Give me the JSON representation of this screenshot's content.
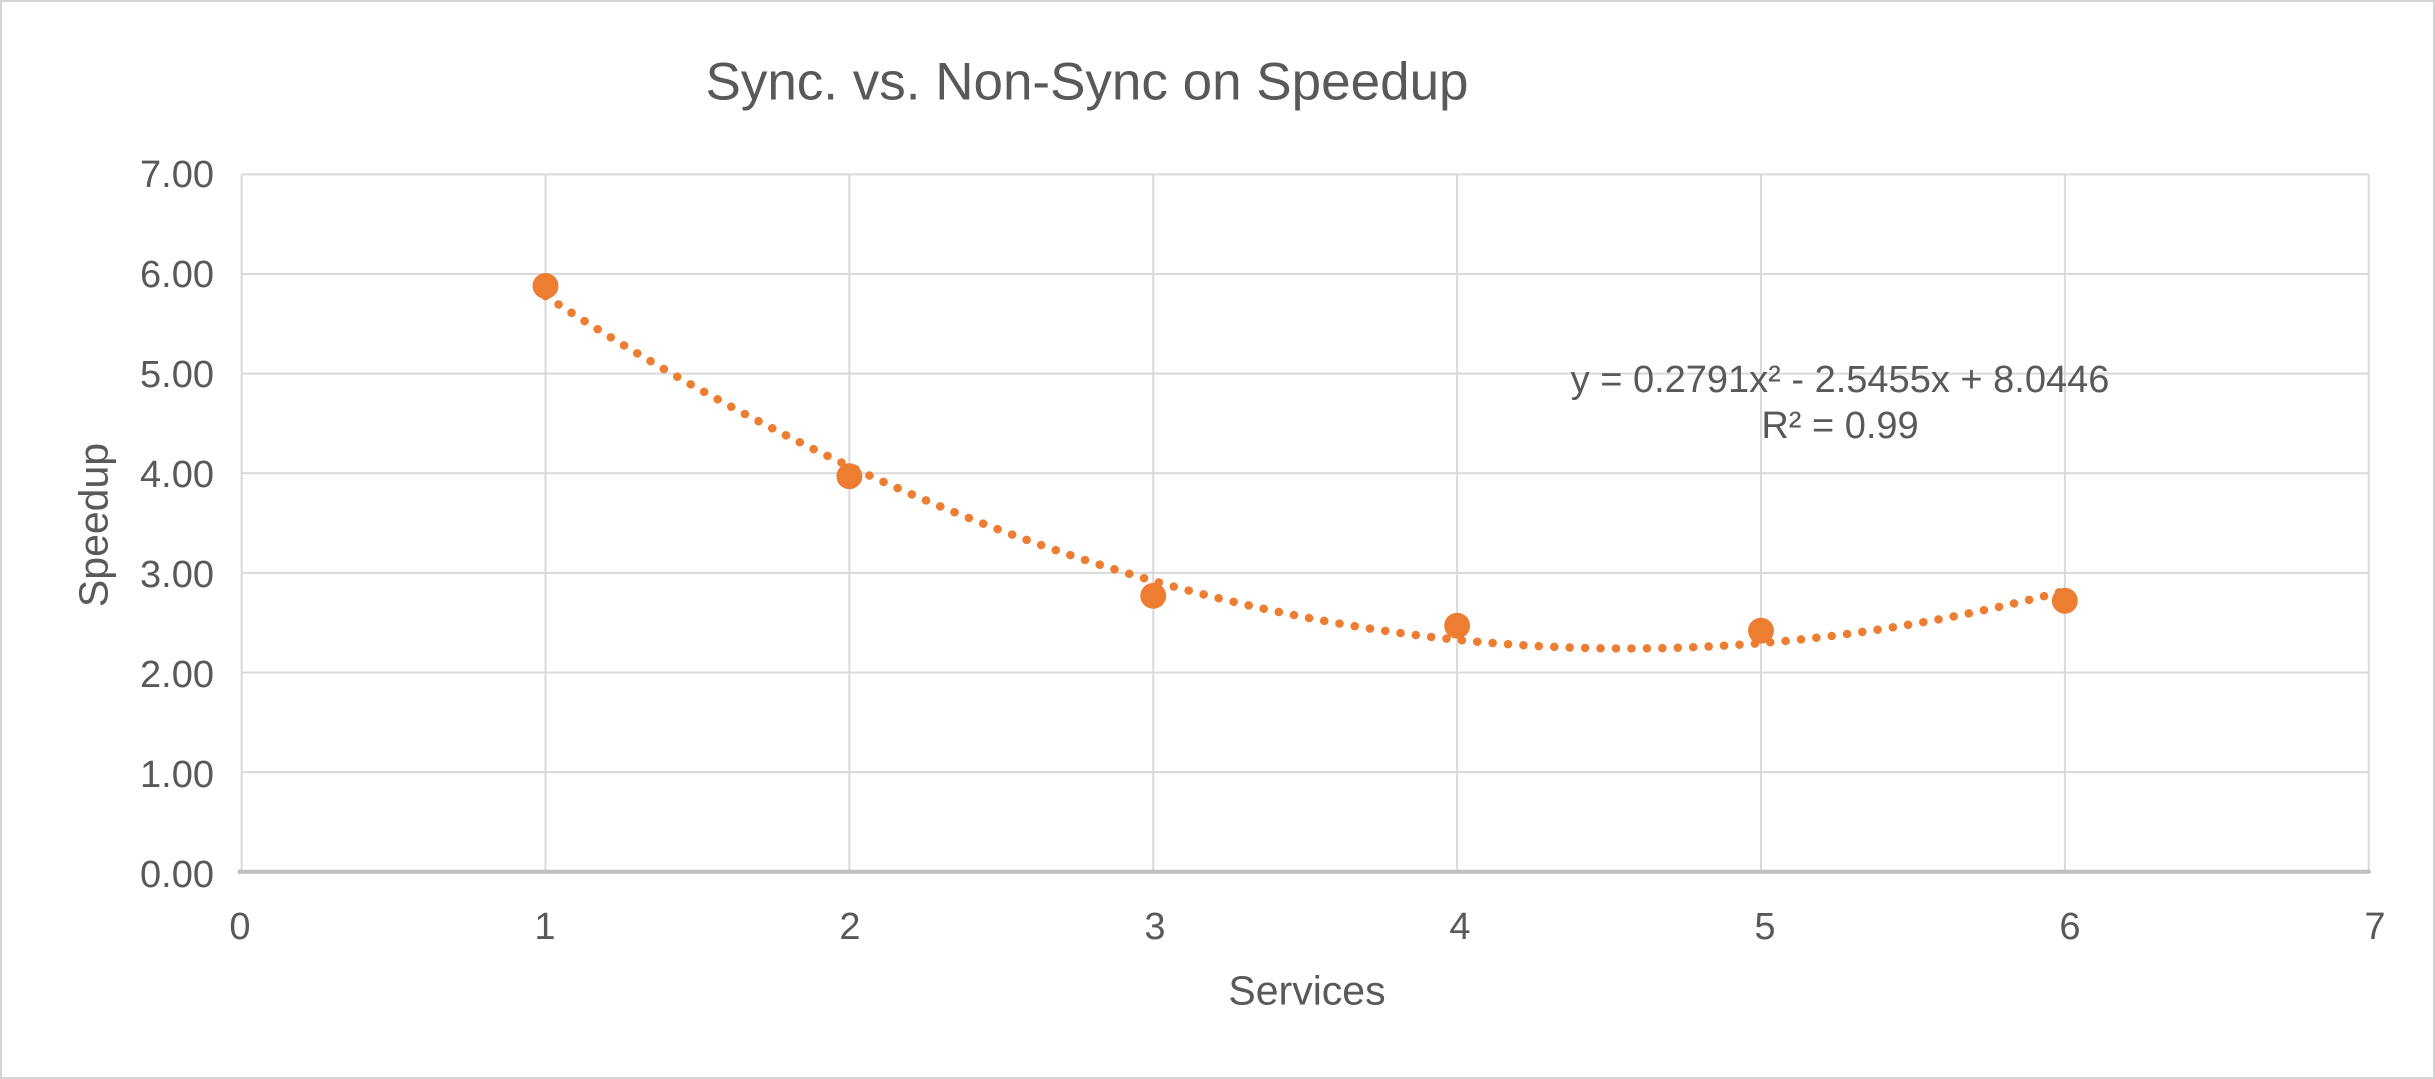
{
  "chart_data": {
    "type": "scatter",
    "title": "Sync. vs. Non-Sync on Speedup",
    "xlabel": "Services",
    "ylabel": "Speedup",
    "series": [
      {
        "name": "Speedup",
        "x": [
          1,
          2,
          3,
          4,
          5,
          6
        ],
        "y": [
          5.88,
          3.97,
          2.77,
          2.47,
          2.42,
          2.72
        ]
      }
    ],
    "xlim": [
      0,
      7
    ],
    "ylim": [
      0,
      7
    ],
    "x_ticks": {
      "values": [
        0,
        1,
        2,
        3,
        4,
        5,
        6,
        7
      ],
      "labels": [
        "0",
        "1",
        "2",
        "3",
        "4",
        "5",
        "6",
        "7"
      ]
    },
    "y_ticks": {
      "values": [
        0,
        1,
        2,
        3,
        4,
        5,
        6,
        7
      ],
      "labels": [
        "0.00",
        "1.00",
        "2.00",
        "3.00",
        "4.00",
        "5.00",
        "6.00",
        "7.00"
      ]
    },
    "grid": true,
    "legend": "none",
    "trendline": {
      "kind": "polynomial",
      "order": 2,
      "coefficients": [
        0.2791,
        -2.5455,
        8.0446
      ],
      "x_range": [
        1,
        6
      ],
      "equation": "y = 0.2791x² - 2.5455x + 8.0446",
      "r2": "R² = 0.99",
      "line_style": "dotted"
    },
    "colors": {
      "marker": "#ED7D31",
      "trendline": "#ED7D31",
      "gridline": "#D9D9D9",
      "axis_line": "#BFBFBF",
      "text": "#595959",
      "background": "#FFFFFF",
      "frame_border": "#D4D4D4"
    }
  }
}
